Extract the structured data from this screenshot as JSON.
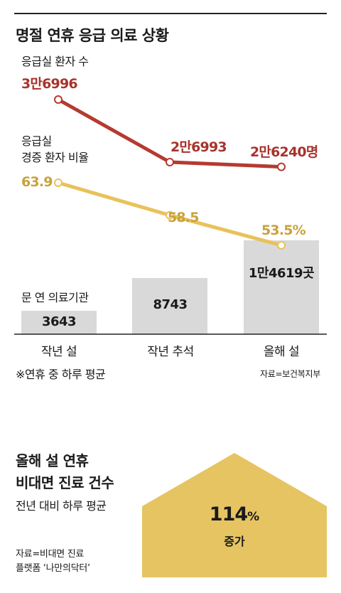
{
  "title": "명절 연휴 응급 의료 상황",
  "labels": {
    "er_patients": "응급실 환자 수",
    "severe_ratio_line1": "응급실",
    "severe_ratio_line2": "경증 환자 비율",
    "institutions": "문 연 의료기관"
  },
  "note": "※연휴 중 하루 평균",
  "source": "자료=보건복지부",
  "colors": {
    "red": "#b53a31",
    "gold": "#e8c25a",
    "bar": "#d9d9d9",
    "pentagon": "#e6c462"
  },
  "chart_data": {
    "type": "bar",
    "categories": [
      "작년 설",
      "작년 추석",
      "올해 설"
    ],
    "series": [
      {
        "name": "문 연 의료기관",
        "values": [
          3643,
          8743,
          14619
        ],
        "labels": [
          "3643",
          "8743",
          "1만4619곳"
        ]
      },
      {
        "name": "응급실 환자 수",
        "values": [
          36996,
          26993,
          26240
        ],
        "labels": [
          "3만6996",
          "2만6993",
          "2만6240명"
        ]
      },
      {
        "name": "응급실 경증 환자 비율",
        "values": [
          63.9,
          58.5,
          53.5
        ],
        "labels": [
          "63.9",
          "58.5",
          "53.5%"
        ]
      }
    ]
  },
  "section2": {
    "title_line1": "올해 설 연휴",
    "title_line2": "비대면 진료 건수",
    "subtitle": "전년 대비 하루 평균",
    "value": "114",
    "unit": "%",
    "change": "증가",
    "source_line1": "자료=비대면 진료",
    "source_line2": "플랫폼 ‘나만의닥터’"
  }
}
